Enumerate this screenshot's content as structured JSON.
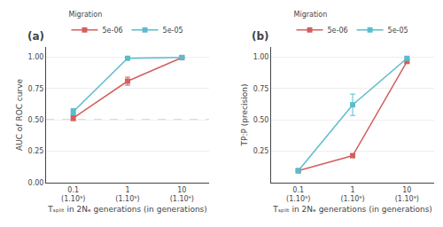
{
  "chart_data": [
    {
      "type": "line",
      "title": "(a)",
      "ylabel": "AUC of ROC curve",
      "xlabel": "Tₛₚₗᵢₜ in 2Nₑ generations (in generations)",
      "categories": [
        "0.1\n(1.10⁹)",
        "1\n(1.10⁹)",
        "10\n(1.10⁹)"
      ],
      "series": [
        {
          "name": "5e-06",
          "color": "#d45f5f",
          "values": [
            0.515,
            0.808,
            0.995
          ],
          "errors": [
            0.022,
            0.032,
            0.004
          ]
        },
        {
          "name": "5e-05",
          "color": "#5bbccc",
          "values": [
            0.565,
            0.99,
            0.997
          ],
          "errors": [
            0.025,
            0.005,
            0.003
          ]
        }
      ],
      "ylim": [
        0.0,
        1.08
      ],
      "yticks": [
        {
          "value": 0.0,
          "label": "0.00"
        },
        0.25,
        {
          "value": 0.5,
          "label": "0.50"
        },
        0.75,
        {
          "value": 1.0,
          "label": "1.00"
        }
      ],
      "hline": 0.5,
      "grid": true,
      "marker": "square",
      "line_style": "solid",
      "legend": "top",
      "legend_title": "Migration"
    },
    {
      "type": "line",
      "title": "(b)",
      "ylabel": "TP:P (precision)",
      "xlabel": "Tₛₚₗᵢₜ in 2Nₑ generations (in generations)",
      "categories": [
        "0.1\n(1.10⁹)",
        "1\n(1.10⁹)",
        "10\n(1.10⁹)"
      ],
      "series": [
        {
          "name": "5e-06",
          "color": "#d45f5f",
          "values": [
            0.095,
            0.215,
            0.965
          ],
          "errors": [
            0.008,
            0.015,
            0.012
          ]
        },
        {
          "name": "5e-05",
          "color": "#5bbccc",
          "values": [
            0.095,
            0.62,
            0.99
          ],
          "errors": [
            0.008,
            0.085,
            0.006
          ]
        }
      ],
      "ylim": [
        0.0,
        1.08
      ],
      "yticks": [
        0.25,
        {
          "value": 0.5,
          "label": "0.50"
        },
        0.75,
        {
          "value": 1.0,
          "label": "1.00"
        }
      ],
      "grid": true,
      "marker": "square",
      "line_style": "solid",
      "legend": "top",
      "legend_title": "Migration"
    }
  ]
}
